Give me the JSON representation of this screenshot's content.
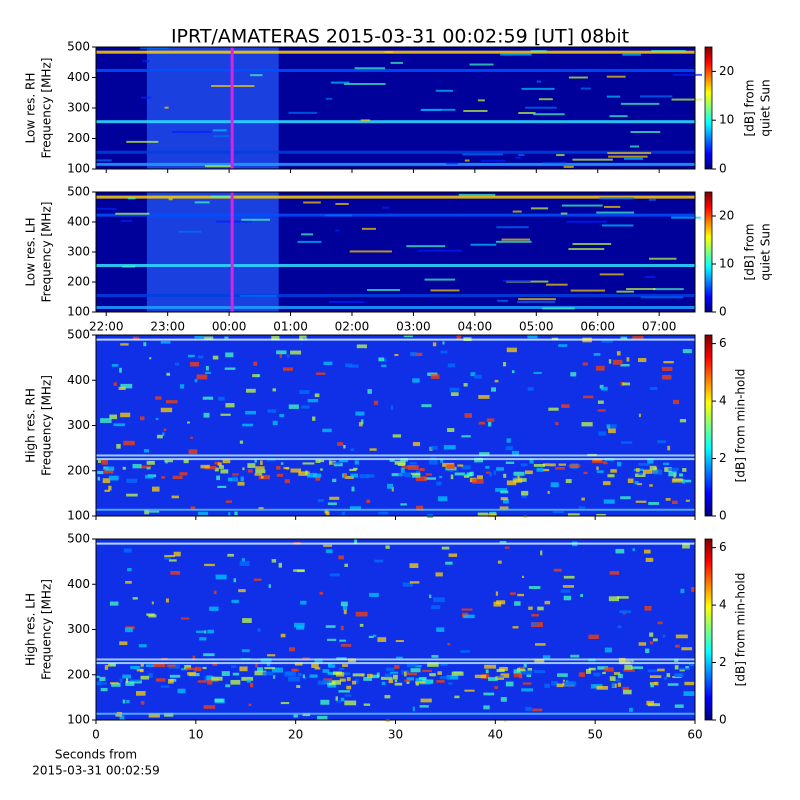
{
  "chart_data": [
    {
      "type": "spectrogram",
      "title": "IPRT/AMATERAS 2015-03-31 00:02:59 [UT]   08bit",
      "ylabel": [
        "Low res. RH",
        "Frequency [MHz]"
      ],
      "ylim": [
        100,
        500
      ],
      "yticks": [
        100,
        200,
        300,
        400,
        500
      ],
      "xlim": [
        "21:50",
        "07:35"
      ],
      "xticks": [
        "22:00",
        "23:00",
        "00:00",
        "01:00",
        "02:00",
        "03:00",
        "04:00",
        "05:00",
        "06:00",
        "07:00"
      ],
      "marker_time": "00:02:59",
      "marker_color": "#e020e0",
      "colorbar": {
        "label": [
          "[dB] from",
          "quiet Sun"
        ],
        "lim": [
          0,
          25
        ],
        "ticks": [
          0,
          10,
          20
        ]
      }
    },
    {
      "type": "spectrogram",
      "ylabel": [
        "Low res. LH",
        "Frequency [MHz]"
      ],
      "ylim": [
        100,
        500
      ],
      "yticks": [
        100,
        200,
        300,
        400,
        500
      ],
      "xlim": [
        "21:50",
        "07:35"
      ],
      "xticks": [
        "22:00",
        "23:00",
        "00:00",
        "01:00",
        "02:00",
        "03:00",
        "04:00",
        "05:00",
        "06:00",
        "07:00"
      ],
      "show_xtick_labels": true,
      "marker_time": "00:02:59",
      "marker_color": "#e020e0",
      "colorbar": {
        "label": [
          "[dB] from",
          "quiet Sun"
        ],
        "lim": [
          0,
          25
        ],
        "ticks": [
          0,
          10,
          20
        ]
      }
    },
    {
      "type": "spectrogram",
      "ylabel": [
        "High res. RH",
        "Frequency [MHz]"
      ],
      "ylim": [
        100,
        500
      ],
      "yticks": [
        100,
        200,
        300,
        400,
        500
      ],
      "xlim": [
        0,
        60
      ],
      "xticks": [
        0,
        10,
        20,
        30,
        40,
        50,
        60
      ],
      "colorbar": {
        "label": [
          "[dB] from min-hold"
        ],
        "lim": [
          0,
          6.3
        ],
        "ticks": [
          0,
          2,
          4,
          6
        ]
      }
    },
    {
      "type": "spectrogram",
      "ylabel": [
        "High res. LH",
        "Frequency [MHz]"
      ],
      "ylim": [
        100,
        500
      ],
      "yticks": [
        100,
        200,
        300,
        400,
        500
      ],
      "xlim": [
        0,
        60
      ],
      "xticks": [
        0,
        10,
        20,
        30,
        40,
        50,
        60
      ],
      "show_xtick_labels": true,
      "xlabel": [
        "Seconds from",
        "2015-03-31 00:02:59"
      ],
      "colorbar": {
        "label": [
          "[dB] from min-hold"
        ],
        "lim": [
          0,
          6.3
        ],
        "ticks": [
          0,
          2,
          4,
          6
        ]
      }
    }
  ]
}
